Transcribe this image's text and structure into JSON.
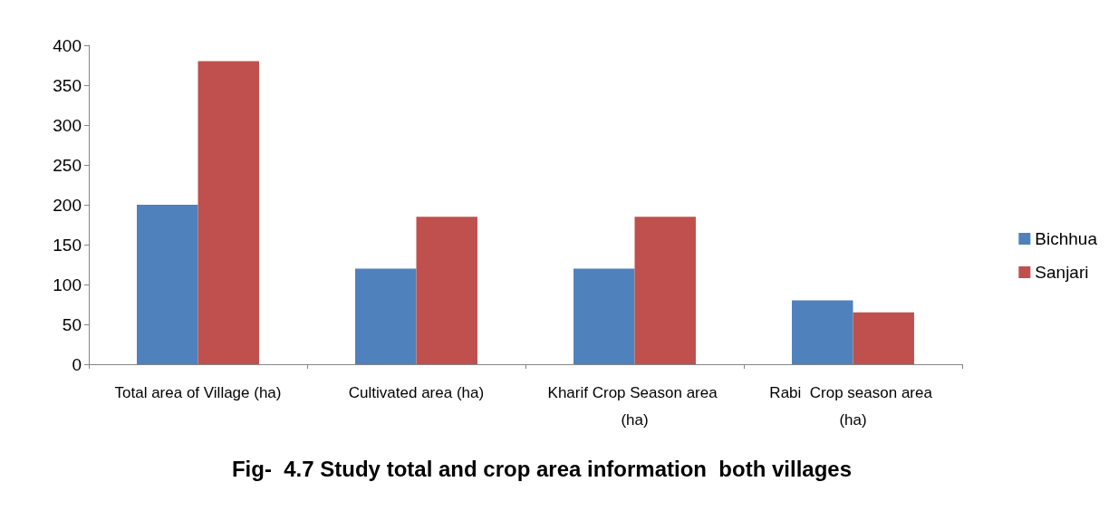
{
  "chart_data": {
    "type": "bar",
    "title": "Fig-  4.7 Study total and crop area information  both villages",
    "categories": [
      "Total area of Village (ha)",
      "Cultivated area (ha)",
      "Kharif Crop Season area (ha)",
      "Rabi  Crop season area (ha)"
    ],
    "series": [
      {
        "name": "Bichhua",
        "color": "#4f81bd",
        "values": [
          200,
          120,
          120,
          80
        ]
      },
      {
        "name": "Sanjari",
        "color": "#c0504d",
        "values": [
          380,
          185,
          185,
          65
        ]
      }
    ],
    "ylim": [
      0,
      400
    ],
    "yticks": [
      0,
      50,
      100,
      150,
      200,
      250,
      300,
      350,
      400
    ],
    "grid": false,
    "legend": "right"
  }
}
